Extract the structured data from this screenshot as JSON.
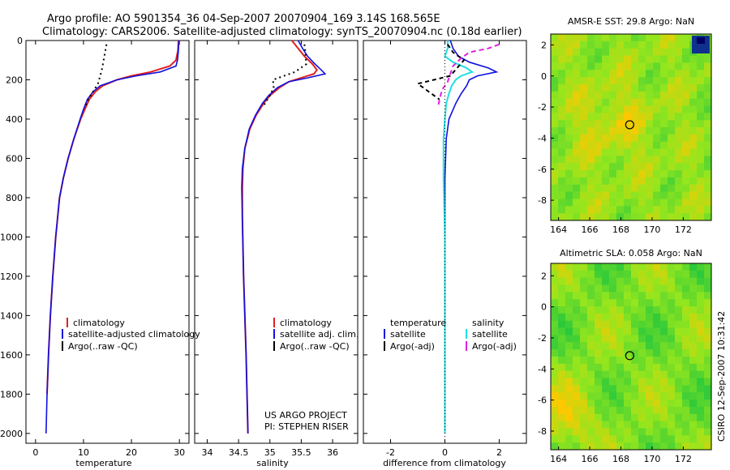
{
  "figure": {
    "title_line1": "Argo profile: AO 5901354_36 04-Sep-2007 20070904_169 3.14S 168.565E",
    "title_line2": "Climatology: CARS2006. Satellite-adjusted climatology: synTS_20070904.nc (0.18d earlier)",
    "project_line1": "US ARGO PROJECT",
    "project_line2": "PI: STEPHEN RISER",
    "stamp": "CSIRO 12-Sep-2007 10:31:42"
  },
  "colors": {
    "climatology": "#e02020",
    "satellite": "#1010e0",
    "argo": "#000000",
    "salinity_satellite": "#20e0e0",
    "salinity_argo": "#e020e0"
  },
  "chart_data": [
    {
      "id": "temperature",
      "type": "line",
      "xlabel": "temperature",
      "xlim": [
        -2,
        32
      ],
      "ylim": [
        2050,
        0
      ],
      "xticks": [
        "0",
        "10",
        "20",
        "30"
      ],
      "xtick_values": [
        0,
        10,
        20,
        30
      ],
      "yticks": [
        "0",
        "200",
        "400",
        "600",
        "800",
        "1000",
        "1200",
        "1400",
        "1600",
        "1800",
        "2000"
      ],
      "ytick_values": [
        0,
        200,
        400,
        600,
        800,
        1000,
        1200,
        1400,
        1600,
        1800,
        2000
      ],
      "legend": [
        "climatology",
        "satellite-adjusted climatology",
        "Argo(..raw -QC)"
      ],
      "series": [
        {
          "key": "climatology",
          "depth": [
            0,
            50,
            100,
            130,
            160,
            180,
            200,
            230,
            260,
            300,
            350,
            400,
            500,
            600,
            700,
            800,
            1000,
            1200,
            1400,
            1600,
            1800
          ],
          "values": [
            29.8,
            29.7,
            29.3,
            28,
            24,
            20,
            17,
            14,
            12.5,
            11.2,
            10.3,
            9.4,
            8.0,
            6.8,
            5.8,
            5.0,
            4.2,
            3.6,
            3.1,
            2.7,
            2.4
          ]
        },
        {
          "key": "satellite",
          "depth": [
            0,
            50,
            100,
            130,
            160,
            180,
            200,
            230,
            260,
            300,
            350,
            400,
            500,
            600,
            700,
            800,
            1000,
            1200,
            1400,
            1600,
            1800,
            2000
          ],
          "values": [
            29.9,
            29.8,
            29.6,
            29.3,
            26,
            21,
            17,
            13.5,
            12,
            10.8,
            10,
            9.3,
            8.0,
            6.8,
            5.8,
            5.0,
            4.2,
            3.6,
            3.1,
            2.7,
            2.4,
            2.2
          ]
        },
        {
          "key": "argo",
          "depth": [
            20,
            60,
            100,
            140,
            180,
            220,
            260,
            300,
            340
          ],
          "values": [
            14.8,
            14.5,
            14.2,
            13.9,
            13.5,
            13.0,
            12.0,
            11.0,
            10.3
          ]
        }
      ]
    },
    {
      "id": "salinity",
      "type": "line",
      "xlabel": "salinity",
      "xlim": [
        33.8,
        36.4
      ],
      "ylim": [
        2050,
        0
      ],
      "xticks": [
        "34",
        "34.5",
        "35",
        "35.5",
        "36"
      ],
      "xtick_values": [
        34,
        34.5,
        35,
        35.5,
        36
      ],
      "legend": [
        "climatology",
        "satellite adj. clim.",
        "Argo(..raw -QC)"
      ],
      "series": [
        {
          "key": "climatology",
          "depth": [
            0,
            40,
            80,
            120,
            150,
            170,
            190,
            210,
            240,
            280,
            320,
            380,
            450,
            550,
            650,
            750,
            900,
            1200,
            1600,
            2000
          ],
          "values": [
            35.35,
            35.45,
            35.55,
            35.68,
            35.75,
            35.7,
            35.5,
            35.3,
            35.15,
            35.0,
            34.9,
            34.78,
            34.68,
            34.6,
            34.57,
            34.56,
            34.56,
            34.58,
            34.62,
            34.65
          ]
        },
        {
          "key": "satellite",
          "depth": [
            0,
            40,
            80,
            120,
            150,
            170,
            190,
            210,
            240,
            280,
            320,
            380,
            450,
            550,
            650,
            750,
            900,
            1200,
            1600,
            2000
          ],
          "values": [
            35.45,
            35.52,
            35.6,
            35.72,
            35.82,
            35.88,
            35.6,
            35.3,
            35.12,
            34.98,
            34.88,
            34.77,
            34.67,
            34.6,
            34.56,
            34.55,
            34.56,
            34.58,
            34.62,
            34.65
          ]
        },
        {
          "key": "argo",
          "depth": [
            20,
            40,
            80,
            120,
            160,
            200,
            240,
            280,
            320,
            340
          ],
          "values": [
            35.55,
            35.56,
            35.57,
            35.58,
            35.4,
            35.05,
            35.06,
            35.0,
            34.92,
            34.9
          ]
        }
      ]
    },
    {
      "id": "difference",
      "type": "line",
      "xlabel": "difference from climatology",
      "xlim": [
        -3.0,
        3.0
      ],
      "ylim": [
        2050,
        0
      ],
      "xticks": [
        "-2",
        "0",
        "2"
      ],
      "xtick_values": [
        -2,
        0,
        2
      ],
      "legend_left": [
        "temperature",
        "satellite",
        "Argo(-adj)"
      ],
      "legend_right": [
        "salinity",
        "satellite",
        "Argo(-adj)"
      ],
      "series": [
        {
          "key": "temp_satellite",
          "depth": [
            0,
            40,
            80,
            110,
            140,
            160,
            180,
            200,
            230,
            270,
            320,
            400,
            500,
            700,
            1000,
            1500,
            2000
          ],
          "values": [
            0.2,
            0.3,
            0.5,
            0.9,
            1.6,
            1.9,
            1.2,
            0.9,
            0.8,
            0.6,
            0.4,
            0.15,
            0.05,
            0.0,
            0.0,
            0.0,
            0.0
          ]
        },
        {
          "key": "sal_satellite",
          "depth": [
            0,
            40,
            80,
            110,
            140,
            160,
            180,
            200,
            230,
            270,
            320,
            400,
            500,
            700,
            1000,
            1500,
            2000
          ],
          "values": [
            0.1,
            0.1,
            0.0,
            0.3,
            0.8,
            1.0,
            0.6,
            0.4,
            0.25,
            0.15,
            0.05,
            0.0,
            -0.05,
            -0.05,
            0.0,
            0.0,
            0.0
          ]
        },
        {
          "key": "temp_argo",
          "depth": [
            20,
            60,
            100,
            180,
            220,
            260,
            300
          ],
          "values": [
            0.1,
            0.3,
            0.7,
            0.2,
            -1.0,
            -0.6,
            -0.2
          ]
        },
        {
          "key": "sal_argo",
          "depth": [
            20,
            40,
            60,
            90,
            130,
            170,
            210,
            250,
            300,
            340
          ],
          "values": [
            2.0,
            1.6,
            0.9,
            0.6,
            0.3,
            0.2,
            0.1,
            -0.1,
            -0.2,
            -0.25
          ]
        }
      ]
    },
    {
      "id": "sst_map",
      "type": "heatmap",
      "title": "AMSR-E SST: 29.8 Argo: NaN",
      "xlim": [
        163.5,
        173.8
      ],
      "ylim": [
        -9.3,
        2.7
      ],
      "xticks": [
        "164",
        "166",
        "168",
        "170",
        "172"
      ],
      "xtick_values": [
        164,
        166,
        168,
        170,
        172
      ],
      "yticks": [
        "2",
        "0",
        "-2",
        "-4",
        "-6",
        "-8"
      ],
      "ytick_values": [
        2,
        0,
        -2,
        -4,
        -6,
        -8
      ],
      "marker": {
        "lon": 168.565,
        "lat": -3.14
      }
    },
    {
      "id": "sla_map",
      "type": "heatmap",
      "title": "Altimetric SLA: 0.058 Argo: NaN",
      "xlim": [
        163.5,
        173.8
      ],
      "ylim": [
        -9.2,
        2.8
      ],
      "xticks": [
        "164",
        "166",
        "168",
        "170",
        "172"
      ],
      "xtick_values": [
        164,
        166,
        168,
        170,
        172
      ],
      "yticks": [
        "2",
        "0",
        "-2",
        "-4",
        "-6",
        "-8"
      ],
      "ytick_values": [
        2,
        0,
        -2,
        -4,
        -6,
        -8
      ],
      "marker": {
        "lon": 168.565,
        "lat": -3.14
      }
    }
  ]
}
